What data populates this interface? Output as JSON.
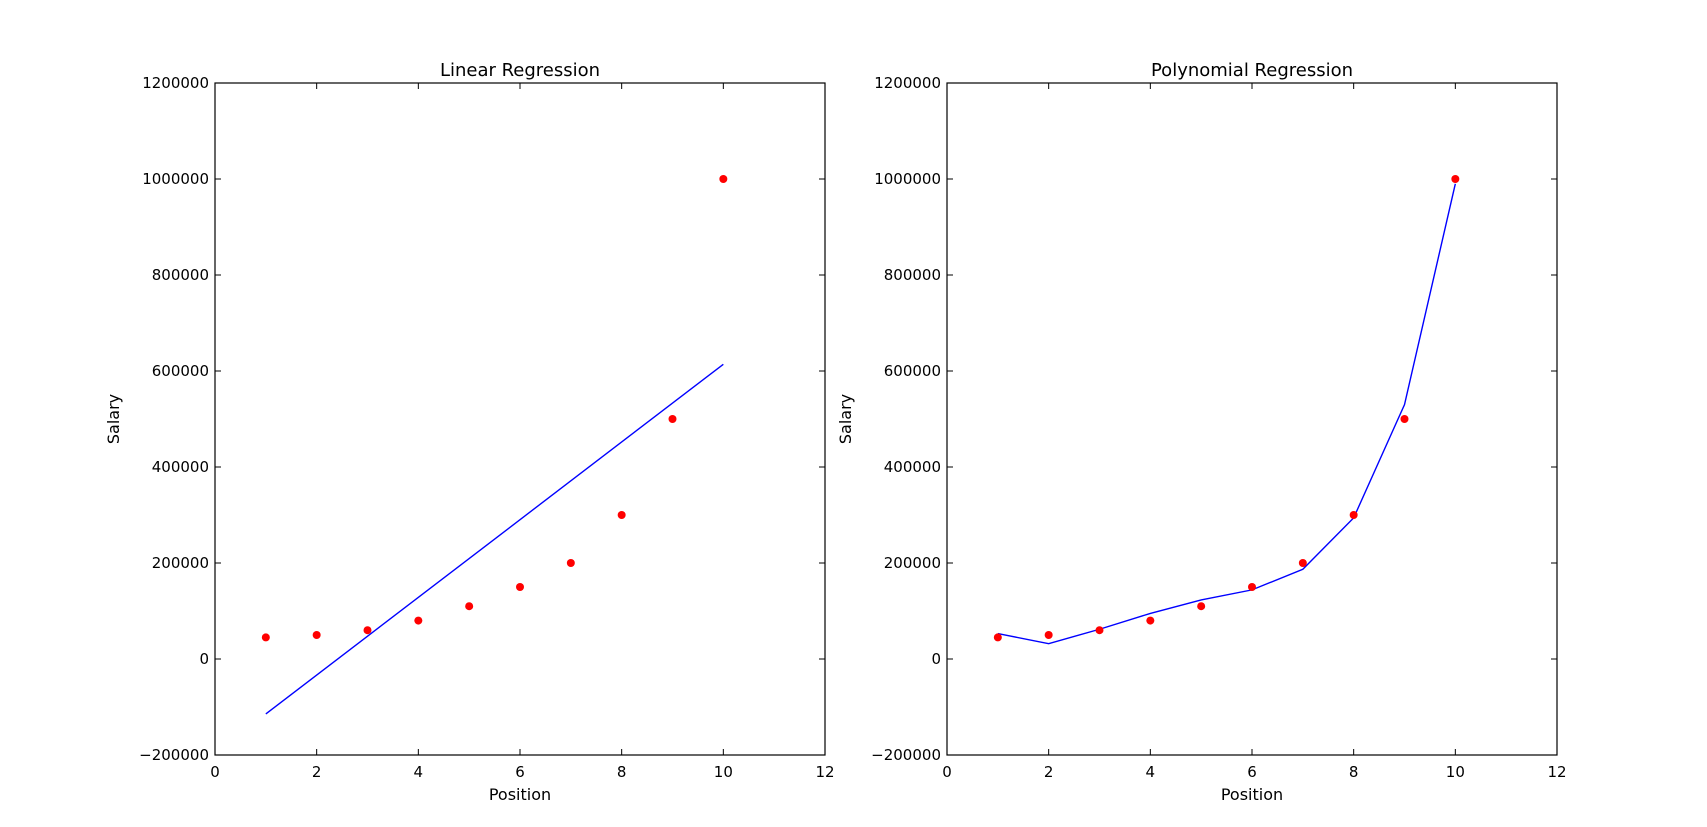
{
  "chart_data": [
    {
      "type": "scatter",
      "title": "Linear Regression",
      "xlabel": "Position",
      "ylabel": "Salary",
      "xlim": [
        0,
        12
      ],
      "ylim": [
        -200000,
        1200000
      ],
      "xticks": [
        0,
        2,
        4,
        6,
        8,
        10,
        12
      ],
      "yticks": [
        -200000,
        0,
        200000,
        400000,
        600000,
        800000,
        1000000,
        1200000
      ],
      "grid": false,
      "series": [
        {
          "kind": "scatter",
          "color": "#ff0000",
          "x": [
            1,
            2,
            3,
            4,
            5,
            6,
            7,
            8,
            9,
            10
          ],
          "y": [
            45000,
            50000,
            60000,
            80000,
            110000,
            150000,
            200000,
            300000,
            500000,
            1000000
          ]
        },
        {
          "kind": "line",
          "color": "#0000ff",
          "x": [
            1,
            10
          ],
          "y": [
            -114454,
            614000
          ]
        }
      ]
    },
    {
      "type": "scatter",
      "title": "Polynomial Regression",
      "xlabel": "Position",
      "ylabel": "Salary",
      "xlim": [
        0,
        12
      ],
      "ylim": [
        -200000,
        1200000
      ],
      "xticks": [
        0,
        2,
        4,
        6,
        8,
        10,
        12
      ],
      "yticks": [
        -200000,
        0,
        200000,
        400000,
        600000,
        800000,
        1000000,
        1200000
      ],
      "grid": false,
      "series": [
        {
          "kind": "scatter",
          "color": "#ff0000",
          "x": [
            1,
            2,
            3,
            4,
            5,
            6,
            7,
            8,
            9,
            10
          ],
          "y": [
            45000,
            50000,
            60000,
            80000,
            110000,
            150000,
            200000,
            300000,
            500000,
            1000000
          ]
        },
        {
          "kind": "line",
          "color": "#0000ff",
          "x": [
            1,
            2,
            3,
            4,
            5,
            6,
            7,
            8,
            9,
            10
          ],
          "y": [
            53000,
            32000,
            62000,
            95000,
            123000,
            144000,
            187000,
            294000,
            530000,
            990000
          ]
        }
      ]
    }
  ]
}
